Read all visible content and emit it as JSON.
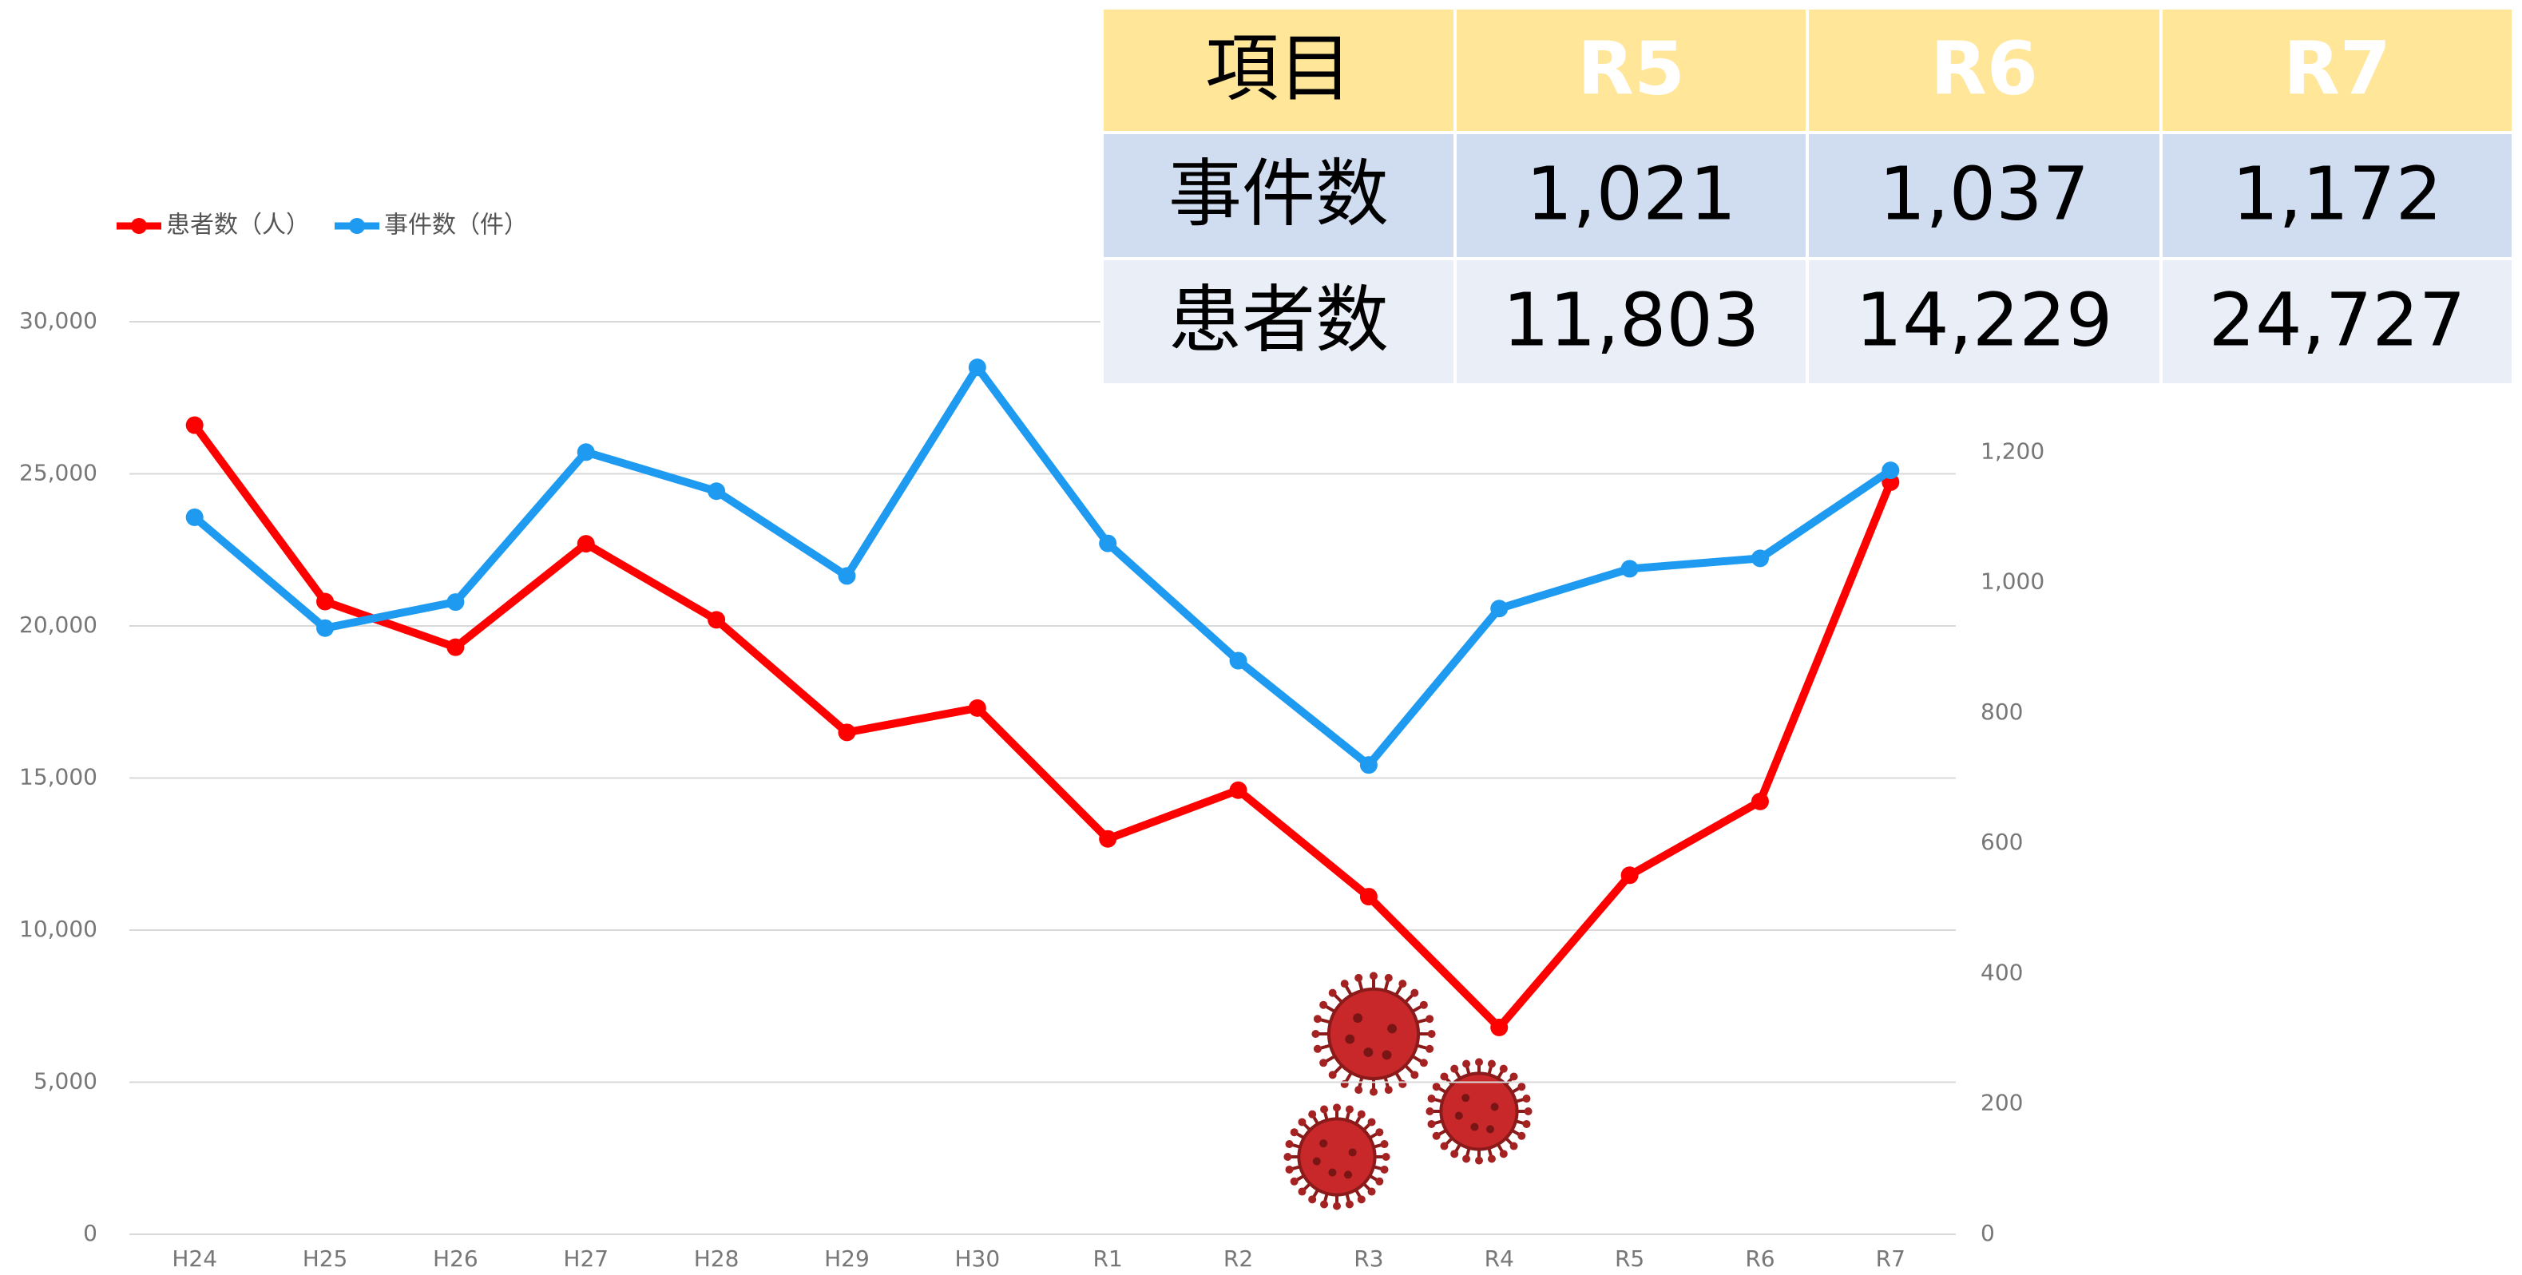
{
  "chart_data": {
    "type": "line",
    "categories": [
      "H24",
      "H25",
      "H26",
      "H27",
      "H28",
      "H29",
      "H30",
      "R1",
      "R2",
      "R3",
      "R4",
      "R5",
      "R6",
      "R7"
    ],
    "series": [
      {
        "name": "患者数（人）",
        "color": "#ff0000",
        "values": [
          26600,
          20800,
          19300,
          22700,
          20200,
          16500,
          17300,
          13000,
          14600,
          11100,
          6800,
          11803,
          14229,
          24727
        ]
      },
      {
        "name": "事件数（件）",
        "color": "#1e9bf0",
        "axis": "y2",
        "values": [
          1100,
          930,
          970,
          1200,
          1140,
          1010,
          1330,
          1060,
          880,
          720,
          960,
          1021,
          1037,
          1172
        ]
      }
    ],
    "ylim": [
      0,
      30000
    ],
    "yticks": [
      0,
      {
        "value": 5000,
        "label": "5,000"
      },
      {
        "value": 10000,
        "label": "10,000"
      },
      {
        "value": 15000,
        "label": "15,000"
      },
      {
        "value": 20000,
        "label": "20,000"
      },
      {
        "value": 25000,
        "label": "25,000"
      },
      {
        "value": 30000,
        "label": "30,000"
      }
    ],
    "y2lim": [
      0,
      1400
    ],
    "y2ticks": [
      0,
      200,
      400,
      600,
      800,
      {
        "value": 1000,
        "label": "1,000"
      },
      {
        "value": 1200,
        "label": "1,200"
      }
    ],
    "grid": true
  },
  "table": {
    "header": [
      "項目",
      "R5",
      "R6",
      "R7"
    ],
    "rows": [
      [
        "事件数",
        "1,021",
        "1,037",
        "1,172"
      ],
      [
        "患者数",
        "11,803",
        "14,229",
        "24,727"
      ]
    ]
  }
}
